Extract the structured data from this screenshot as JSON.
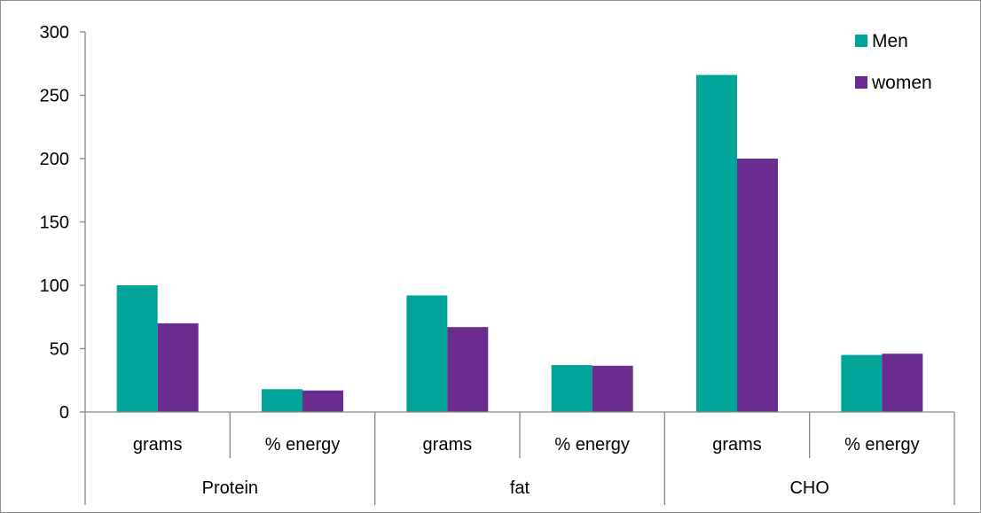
{
  "chart_data": {
    "type": "bar",
    "title": "",
    "xlabel": "",
    "ylabel": "",
    "ylim": [
      0,
      300
    ],
    "yticks": [
      0,
      50,
      100,
      150,
      200,
      250,
      300
    ],
    "grid": false,
    "legend_position": "top-right",
    "groups": [
      {
        "label": "Protein",
        "categories": [
          "grams",
          "% energy"
        ]
      },
      {
        "label": "fat",
        "categories": [
          "grams",
          "% energy"
        ]
      },
      {
        "label": "CHO",
        "categories": [
          "grams",
          "% energy"
        ]
      }
    ],
    "series": [
      {
        "name": "Men",
        "color": "#00A499",
        "values": [
          100,
          18,
          92,
          37,
          266,
          45
        ]
      },
      {
        "name": "women",
        "color": "#6A2C8E",
        "values": [
          70,
          17,
          67,
          36.5,
          200,
          46
        ]
      }
    ]
  }
}
